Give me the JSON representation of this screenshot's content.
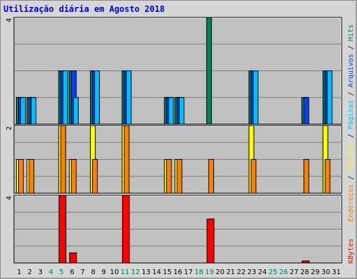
{
  "title": "Utilização diária em Agosto 2018",
  "legend": {
    "hits": "Hits",
    "files": "Arquivos",
    "pages": "Páginas",
    "visits": "Visitas",
    "sites": "Endereços",
    "kbytes": "KBytes",
    "separator": " / "
  },
  "colors": {
    "background": "#c0c0c0",
    "hits": "#00805c",
    "files": "#0040ff",
    "pages": "#00c0ff",
    "visits": "#ffff00",
    "sites": "#ff8000",
    "kbytes": "#ff0000",
    "weekend_label": "#00805c",
    "title": "#0000cc"
  },
  "chart_data": [
    {
      "type": "bar",
      "panel": "hits-files-pages",
      "x": [
        1,
        2,
        3,
        4,
        5,
        6,
        7,
        8,
        9,
        10,
        11,
        12,
        13,
        14,
        15,
        16,
        17,
        18,
        19,
        20,
        21,
        22,
        23,
        24,
        25,
        26,
        27,
        28,
        29,
        30,
        31
      ],
      "ylim": [
        0,
        4
      ],
      "ytick_label": "4",
      "series": [
        {
          "name": "Hits",
          "key": "hits",
          "values": [
            1,
            1,
            0,
            0,
            2,
            2,
            0,
            2,
            0,
            0,
            2,
            0,
            0,
            0,
            1,
            1,
            0,
            0,
            4,
            0,
            0,
            0,
            2,
            0,
            0,
            0,
            0,
            1,
            0,
            2,
            0
          ]
        },
        {
          "name": "Arquivos",
          "key": "files",
          "values": [
            1,
            1,
            0,
            0,
            2,
            2,
            0,
            2,
            0,
            0,
            2,
            0,
            0,
            0,
            1,
            1,
            0,
            0,
            0,
            0,
            0,
            0,
            2,
            0,
            0,
            0,
            0,
            1,
            0,
            2,
            0
          ]
        },
        {
          "name": "Páginas",
          "key": "pages",
          "values": [
            1,
            1,
            0,
            0,
            2,
            1,
            0,
            2,
            0,
            0,
            2,
            0,
            0,
            0,
            1,
            1,
            0,
            0,
            0,
            0,
            0,
            0,
            2,
            0,
            0,
            0,
            0,
            0,
            0,
            2,
            0
          ]
        }
      ]
    },
    {
      "type": "bar",
      "panel": "visits-sites",
      "x": [
        1,
        2,
        3,
        4,
        5,
        6,
        7,
        8,
        9,
        10,
        11,
        12,
        13,
        14,
        15,
        16,
        17,
        18,
        19,
        20,
        21,
        22,
        23,
        24,
        25,
        26,
        27,
        28,
        29,
        30,
        31
      ],
      "ylim": [
        0,
        2
      ],
      "ytick_label": "2",
      "series": [
        {
          "name": "Visitas",
          "key": "visits",
          "values": [
            1,
            1,
            0,
            0,
            2,
            1,
            0,
            2,
            0,
            0,
            2,
            0,
            0,
            0,
            1,
            1,
            0,
            0,
            0,
            0,
            0,
            0,
            2,
            0,
            0,
            0,
            0,
            0,
            0,
            2,
            0
          ]
        },
        {
          "name": "Endereços",
          "key": "sites",
          "values": [
            1,
            1,
            0,
            0,
            2,
            1,
            0,
            1,
            0,
            0,
            2,
            0,
            0,
            0,
            1,
            1,
            0,
            0,
            1,
            0,
            0,
            0,
            1,
            0,
            0,
            0,
            0,
            1,
            0,
            1,
            0
          ]
        }
      ]
    },
    {
      "type": "bar",
      "panel": "kbytes",
      "x": [
        1,
        2,
        3,
        4,
        5,
        6,
        7,
        8,
        9,
        10,
        11,
        12,
        13,
        14,
        15,
        16,
        17,
        18,
        19,
        20,
        21,
        22,
        23,
        24,
        25,
        26,
        27,
        28,
        29,
        30,
        31
      ],
      "ylim": [
        0,
        4
      ],
      "ytick_label": "4",
      "series": [
        {
          "name": "KBytes",
          "key": "kbytes",
          "values": [
            0,
            0,
            0,
            0,
            4,
            0.6,
            0,
            0,
            0,
            0,
            4,
            0,
            0,
            0,
            0,
            0,
            0,
            0,
            2.6,
            0,
            0,
            0,
            0,
            0,
            0,
            0,
            0,
            0.12,
            0,
            0,
            0
          ]
        }
      ]
    }
  ],
  "weekend_days": [
    4,
    5,
    11,
    12,
    18,
    19,
    25,
    26
  ]
}
